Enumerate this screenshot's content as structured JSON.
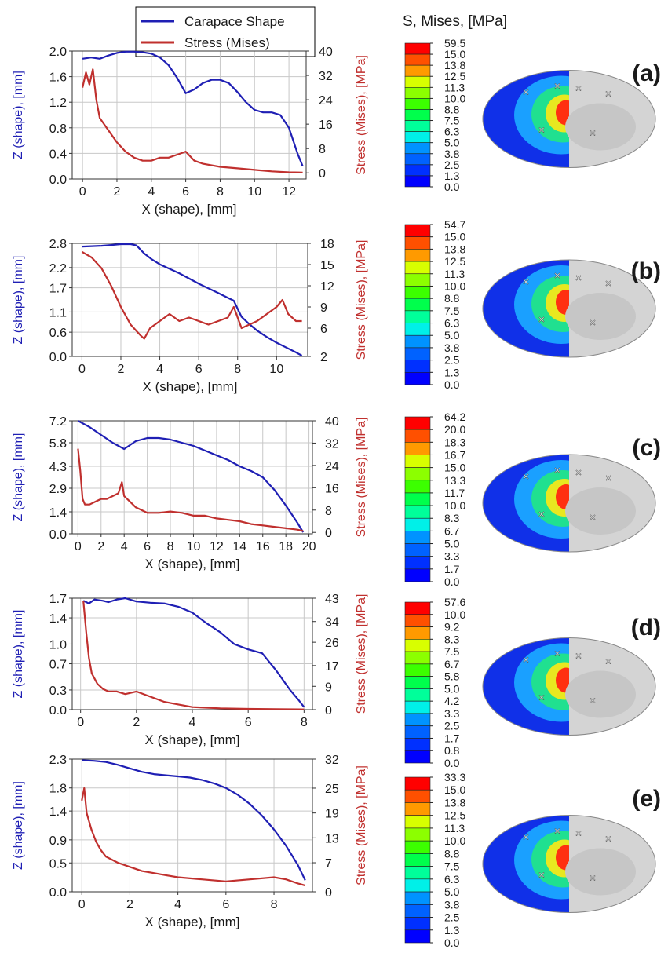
{
  "legend": {
    "entries": [
      {
        "label": "Carapace Shape",
        "color": "#1f1fb4"
      },
      {
        "label": "Stress (Mises)",
        "color": "#c0302e"
      }
    ]
  },
  "colorbar_title": "S, Mises, [MPa]",
  "colors": {
    "shape": "#1f1fb4",
    "stress": "#c0302e",
    "grid": "#c8c8c8",
    "model_gray": "#d4d4d4",
    "contour_scale": [
      "#0000ff",
      "#0030ff",
      "#0062ff",
      "#0093ff",
      "#00c4ff",
      "#00f0e8",
      "#00ff9a",
      "#00ff4c",
      "#3cff00",
      "#8cff00",
      "#d8ff00",
      "#ffd000",
      "#ff9a00",
      "#ff5000",
      "#ff0000"
    ]
  },
  "chart_data": [
    {
      "type": "line",
      "panel": "(a)",
      "xlabel": "X (shape), [mm]",
      "ylabel": "Z (shape), [mm]",
      "y2label": "Stress (Mises), [MPa]",
      "xticks": [
        "0",
        "2",
        "4",
        "6",
        "8",
        "10",
        "12"
      ],
      "yticks": [
        "0.0",
        "0.4",
        "0.8",
        "1.2",
        "1.6",
        "2.0"
      ],
      "y2ticks": [
        "0",
        "8",
        "16",
        "24",
        "32",
        "40"
      ],
      "xlim": [
        -0.6,
        13.0
      ],
      "ylim": [
        0,
        2.0
      ],
      "y2lim": [
        -2,
        40
      ],
      "grid": true,
      "series": [
        {
          "name": "Carapace Shape",
          "axis": "left",
          "x": [
            0,
            0.5,
            1,
            1.5,
            2,
            2.5,
            3,
            3.5,
            4,
            4.5,
            5,
            5.5,
            6,
            6.5,
            7,
            7.5,
            8,
            8.5,
            9,
            9.5,
            10,
            10.5,
            11,
            11.5,
            12,
            12.5,
            12.8
          ],
          "y": [
            1.88,
            1.9,
            1.88,
            1.93,
            1.97,
            1.99,
            1.99,
            1.98,
            1.96,
            1.9,
            1.78,
            1.58,
            1.34,
            1.4,
            1.5,
            1.55,
            1.55,
            1.5,
            1.36,
            1.2,
            1.08,
            1.04,
            1.04,
            1.0,
            0.8,
            0.4,
            0.2
          ]
        },
        {
          "name": "Stress (Mises)",
          "axis": "right",
          "x": [
            0,
            0.2,
            0.4,
            0.6,
            0.8,
            1,
            1.5,
            2,
            2.5,
            3,
            3.5,
            4,
            4.5,
            5,
            5.5,
            6,
            6.5,
            7,
            8,
            9,
            10,
            11,
            12,
            12.8
          ],
          "y": [
            28,
            33,
            29,
            34,
            24,
            18,
            14,
            10,
            7,
            5,
            4,
            4,
            5,
            5,
            6,
            7,
            4,
            3,
            2,
            1.5,
            1,
            0.5,
            0.2,
            0.1
          ]
        }
      ],
      "colorbar": {
        "labels": [
          "59.5",
          "15.0",
          "13.8",
          "12.5",
          "11.3",
          "10.0",
          "8.8",
          "7.5",
          "6.3",
          "5.0",
          "3.8",
          "2.5",
          "1.3",
          "0.0"
        ]
      }
    },
    {
      "type": "line",
      "panel": "(b)",
      "xlabel": "X (shape), [mm]",
      "ylabel": "Z (shape), [mm]",
      "y2label": "Stress (Mises), [MPa]",
      "xticks": [
        "0",
        "2",
        "4",
        "6",
        "8",
        "10"
      ],
      "yticks": [
        "0.0",
        "0.6",
        "1.1",
        "1.7",
        "2.2",
        "2.8"
      ],
      "y2ticks": [
        "2",
        "6",
        "9",
        "12",
        "15",
        "18"
      ],
      "xlim": [
        -0.5,
        11.6
      ],
      "ylim": [
        0,
        2.8
      ],
      "y2lim": [
        2,
        18
      ],
      "grid": true,
      "series": [
        {
          "name": "Carapace Shape",
          "axis": "left",
          "x": [
            0,
            0.5,
            1,
            1.5,
            2,
            2.5,
            2.8,
            3.2,
            3.6,
            4,
            5,
            6,
            7,
            7.5,
            7.8,
            8.2,
            8.6,
            9,
            9.5,
            10,
            10.5,
            11,
            11.3
          ],
          "y": [
            2.72,
            2.73,
            2.74,
            2.76,
            2.78,
            2.78,
            2.75,
            2.55,
            2.4,
            2.28,
            2.06,
            1.8,
            1.57,
            1.45,
            1.38,
            0.98,
            0.8,
            0.64,
            0.48,
            0.34,
            0.22,
            0.1,
            0.02
          ]
        },
        {
          "name": "Stress (Mises)",
          "axis": "right",
          "x": [
            0,
            0.5,
            1,
            1.5,
            2,
            2.5,
            3,
            3.2,
            3.5,
            4,
            4.5,
            5,
            5.5,
            6,
            6.5,
            7,
            7.5,
            7.8,
            8.2,
            8.6,
            9,
            9.5,
            10,
            10.3,
            10.6,
            11,
            11.3
          ],
          "y": [
            16.8,
            16,
            14.5,
            12,
            9,
            6.5,
            5,
            4.5,
            6,
            7,
            8,
            7,
            7.5,
            7,
            6.5,
            7,
            7.5,
            9,
            6,
            6.5,
            7,
            8,
            9,
            10,
            8,
            7,
            7
          ]
        }
      ],
      "colorbar": {
        "labels": [
          "54.7",
          "15.0",
          "13.8",
          "12.5",
          "11.3",
          "10.0",
          "8.8",
          "7.5",
          "6.3",
          "5.0",
          "3.8",
          "2.5",
          "1.3",
          "0.0"
        ]
      }
    },
    {
      "type": "line",
      "panel": "(c)",
      "xlabel": "X (shape), [mm]",
      "ylabel": "Z (shape), [mm]",
      "y2label": "Stress (Mises), [MPa]",
      "xticks": [
        "0",
        "2",
        "4",
        "6",
        "8",
        "10",
        "12",
        "14",
        "16",
        "18",
        "20"
      ],
      "yticks": [
        "0.0",
        "1.4",
        "2.9",
        "4.3",
        "5.8",
        "7.2"
      ],
      "y2ticks": [
        "0",
        "8",
        "16",
        "24",
        "32",
        "40"
      ],
      "xlim": [
        -0.5,
        20.3
      ],
      "ylim": [
        0,
        7.2
      ],
      "y2lim": [
        -0.5,
        40
      ],
      "grid": true,
      "series": [
        {
          "name": "Carapace Shape",
          "axis": "left",
          "x": [
            0,
            1,
            2,
            3,
            4,
            5,
            6,
            7,
            8,
            9,
            10,
            11,
            12,
            13,
            14,
            15,
            16,
            17,
            18,
            19,
            19.5
          ],
          "y": [
            7.2,
            6.8,
            6.3,
            5.8,
            5.4,
            5.9,
            6.1,
            6.1,
            6.0,
            5.8,
            5.6,
            5.3,
            5.0,
            4.7,
            4.3,
            4.0,
            3.6,
            2.8,
            1.8,
            0.7,
            0.1
          ]
        },
        {
          "name": "Stress (Mises)",
          "axis": "right",
          "x": [
            0,
            0.2,
            0.4,
            0.6,
            1,
            1.5,
            2,
            2.5,
            3,
            3.5,
            3.8,
            4,
            4.5,
            5,
            5.5,
            6,
            7,
            8,
            9,
            10,
            11,
            12,
            13,
            14,
            15,
            16,
            17,
            18,
            19,
            19.5
          ],
          "y": [
            30,
            22,
            12,
            10,
            10,
            11,
            12,
            12,
            13,
            14,
            18,
            13,
            11,
            9,
            8,
            7,
            7,
            7.5,
            7,
            6,
            6,
            5,
            4.5,
            4,
            3,
            2.5,
            2,
            1.5,
            1,
            0.5
          ]
        }
      ],
      "colorbar": {
        "labels": [
          "64.2",
          "20.0",
          "18.3",
          "16.7",
          "15.0",
          "13.3",
          "11.7",
          "10.0",
          "8.3",
          "6.7",
          "5.0",
          "3.3",
          "1.7",
          "0.0"
        ]
      }
    },
    {
      "type": "line",
      "panel": "(d)",
      "xlabel": "X (shape), [mm]",
      "ylabel": "Z (shape), [mm]",
      "y2label": "Stress (Mises), [MPa]",
      "xticks": [
        "0",
        "2",
        "4",
        "6",
        "8"
      ],
      "yticks": [
        "0.0",
        "0.3",
        "0.7",
        "1.0",
        "1.4",
        "1.7"
      ],
      "y2ticks": [
        "0",
        "9",
        "17",
        "26",
        "34",
        "43"
      ],
      "xlim": [
        -0.3,
        8.3
      ],
      "ylim": [
        0,
        1.7
      ],
      "y2lim": [
        0,
        43
      ],
      "grid": true,
      "series": [
        {
          "name": "Carapace Shape",
          "axis": "left",
          "x": [
            0.1,
            0.3,
            0.5,
            0.8,
            1,
            1.3,
            1.6,
            2,
            2.5,
            3,
            3.5,
            4,
            4.5,
            5,
            5.5,
            6,
            6.5,
            7,
            7.5,
            7.8,
            8
          ],
          "y": [
            1.66,
            1.62,
            1.68,
            1.66,
            1.64,
            1.68,
            1.7,
            1.65,
            1.63,
            1.62,
            1.57,
            1.48,
            1.32,
            1.18,
            1.0,
            0.92,
            0.86,
            0.6,
            0.3,
            0.15,
            0.04
          ]
        },
        {
          "name": "Stress (Mises)",
          "axis": "right",
          "x": [
            0.1,
            0.2,
            0.3,
            0.4,
            0.6,
            0.8,
            1,
            1.3,
            1.6,
            2,
            2.5,
            3,
            3.5,
            4,
            5,
            6,
            7,
            8
          ],
          "y": [
            42,
            30,
            20,
            14,
            10,
            8,
            7,
            7,
            6,
            7,
            5,
            3,
            2,
            1,
            0.5,
            0.3,
            0.2,
            0.1
          ]
        }
      ],
      "colorbar": {
        "labels": [
          "57.6",
          "10.0",
          "9.2",
          "8.3",
          "7.5",
          "6.7",
          "5.8",
          "5.0",
          "4.2",
          "3.3",
          "2.5",
          "1.7",
          "0.8",
          "0.0"
        ]
      }
    },
    {
      "type": "line",
      "panel": "(e)",
      "xlabel": "X (shape), [mm]",
      "ylabel": "Z (shape), [mm]",
      "y2label": "Stress (Mises), [MPa]",
      "xticks": [
        "0",
        "2",
        "4",
        "6",
        "8"
      ],
      "yticks": [
        "0.0",
        "0.5",
        "0.9",
        "1.4",
        "1.8",
        "2.3"
      ],
      "y2ticks": [
        "0",
        "7",
        "13",
        "19",
        "25",
        "32"
      ],
      "xlim": [
        -0.4,
        9.6
      ],
      "ylim": [
        0,
        2.3
      ],
      "y2lim": [
        0,
        32
      ],
      "grid": true,
      "series": [
        {
          "name": "Carapace Shape",
          "axis": "left",
          "x": [
            0,
            0.5,
            1,
            1.5,
            2,
            2.5,
            3,
            3.5,
            4,
            4.5,
            5,
            5.5,
            6,
            6.5,
            7,
            7.5,
            8,
            8.5,
            9,
            9.3
          ],
          "y": [
            2.28,
            2.27,
            2.25,
            2.2,
            2.14,
            2.08,
            2.04,
            2.02,
            2.0,
            1.98,
            1.94,
            1.88,
            1.8,
            1.68,
            1.52,
            1.32,
            1.08,
            0.8,
            0.46,
            0.2
          ]
        },
        {
          "name": "Stress (Mises)",
          "axis": "right",
          "x": [
            0,
            0.1,
            0.2,
            0.4,
            0.6,
            0.8,
            1,
            1.5,
            2,
            2.5,
            3,
            3.5,
            4,
            5,
            6,
            7,
            8,
            8.5,
            9,
            9.3
          ],
          "y": [
            22,
            25,
            19,
            15,
            12,
            10,
            8.5,
            7,
            6,
            5,
            4.5,
            4,
            3.5,
            3,
            2.5,
            3,
            3.5,
            3,
            2,
            1.5
          ]
        }
      ],
      "colorbar": {
        "labels": [
          "33.3",
          "15.0",
          "13.8",
          "12.5",
          "11.3",
          "10.0",
          "8.8",
          "7.5",
          "6.3",
          "5.0",
          "3.8",
          "2.5",
          "1.3",
          "0.0"
        ]
      }
    }
  ]
}
